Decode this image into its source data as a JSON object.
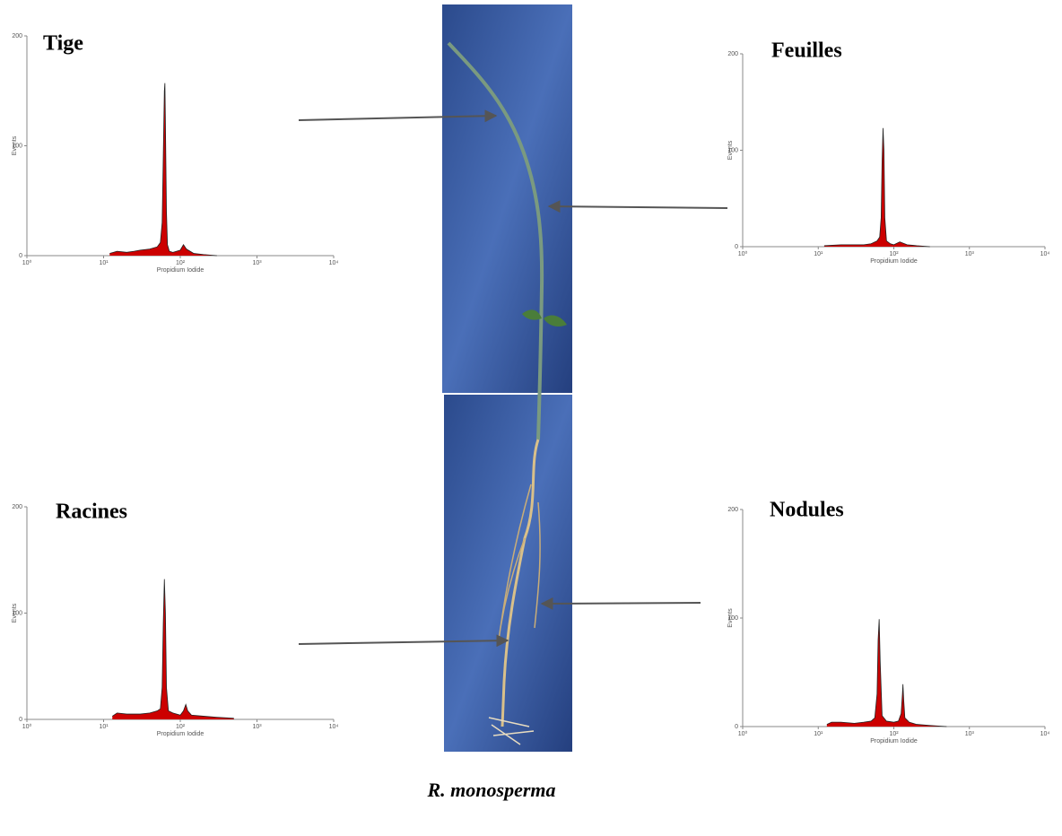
{
  "chart_data": [
    {
      "type": "area",
      "title": "Tige",
      "xlabel": "Propidium Iodide",
      "ylabel": "Events",
      "color": "#cc0000",
      "log_x": true,
      "xlim": [
        1,
        10000
      ],
      "xticks": [
        {
          "value": 1,
          "label": "10⁰"
        },
        {
          "value": 10,
          "label": "10¹"
        },
        {
          "value": 100,
          "label": "10²"
        },
        {
          "value": 1000,
          "label": "10³"
        },
        {
          "value": 10000,
          "label": "10⁴"
        }
      ],
      "ylim": [
        0,
        200
      ],
      "yticks": [
        0,
        100,
        200
      ],
      "x": [
        12,
        15,
        20,
        25,
        30,
        40,
        50,
        55,
        58,
        60,
        62,
        63,
        64,
        66,
        68,
        72,
        80,
        100,
        110,
        120,
        150,
        200,
        300
      ],
      "values": [
        2,
        4,
        3,
        4,
        5,
        6,
        8,
        12,
        30,
        90,
        150,
        157,
        120,
        40,
        10,
        4,
        3,
        5,
        10,
        6,
        2,
        1,
        0
      ]
    },
    {
      "type": "area",
      "title": "Feuilles",
      "xlabel": "Propidium Iodide",
      "ylabel": "Events",
      "color": "#cc0000",
      "log_x": true,
      "xlim": [
        1,
        10000
      ],
      "xticks": [
        {
          "value": 1,
          "label": "10⁰"
        },
        {
          "value": 10,
          "label": "10¹"
        },
        {
          "value": 100,
          "label": "10²"
        },
        {
          "value": 1000,
          "label": "10³"
        },
        {
          "value": 10000,
          "label": "10⁴"
        }
      ],
      "ylim": [
        0,
        200
      ],
      "yticks": [
        0,
        100,
        200
      ],
      "x": [
        12,
        20,
        30,
        40,
        50,
        60,
        65,
        68,
        70,
        72,
        74,
        76,
        80,
        90,
        100,
        120,
        150,
        200,
        300
      ],
      "values": [
        1,
        2,
        2,
        2,
        3,
        6,
        10,
        30,
        90,
        123,
        100,
        30,
        6,
        3,
        2,
        5,
        2,
        1,
        0
      ]
    },
    {
      "type": "area",
      "title": "Racines",
      "xlabel": "Propidium Iodide",
      "ylabel": "Events",
      "color": "#cc0000",
      "log_x": true,
      "xlim": [
        1,
        10000
      ],
      "xticks": [
        {
          "value": 1,
          "label": "10⁰"
        },
        {
          "value": 10,
          "label": "10¹"
        },
        {
          "value": 100,
          "label": "10²"
        },
        {
          "value": 1000,
          "label": "10³"
        },
        {
          "value": 10000,
          "label": "10⁴"
        }
      ],
      "ylim": [
        0,
        200
      ],
      "yticks": [
        0,
        100,
        200
      ],
      "x": [
        13,
        15,
        20,
        30,
        40,
        50,
        55,
        58,
        60,
        62,
        64,
        66,
        70,
        80,
        100,
        110,
        118,
        125,
        140,
        200,
        300,
        500
      ],
      "values": [
        3,
        6,
        5,
        5,
        6,
        8,
        10,
        30,
        90,
        132,
        100,
        30,
        8,
        6,
        4,
        8,
        14,
        8,
        4,
        3,
        2,
        1
      ]
    },
    {
      "type": "area",
      "title": "Nodules",
      "xlabel": "Propidium Iodide",
      "ylabel": "Events",
      "color": "#cc0000",
      "log_x": true,
      "xlim": [
        1,
        10000
      ],
      "xticks": [
        {
          "value": 1,
          "label": "10⁰"
        },
        {
          "value": 10,
          "label": "10¹"
        },
        {
          "value": 100,
          "label": "10²"
        },
        {
          "value": 1000,
          "label": "10³"
        },
        {
          "value": 10000,
          "label": "10⁴"
        }
      ],
      "ylim": [
        0,
        200
      ],
      "yticks": [
        0,
        100,
        200
      ],
      "x": [
        13,
        15,
        20,
        30,
        40,
        50,
        56,
        60,
        62,
        64,
        66,
        70,
        80,
        100,
        115,
        125,
        130,
        132,
        135,
        140,
        160,
        200,
        300,
        500
      ],
      "values": [
        2,
        4,
        4,
        3,
        4,
        5,
        8,
        30,
        80,
        99,
        60,
        10,
        5,
        4,
        5,
        12,
        30,
        39,
        25,
        8,
        4,
        2,
        1,
        0
      ]
    }
  ],
  "caption": "R. monosperma"
}
